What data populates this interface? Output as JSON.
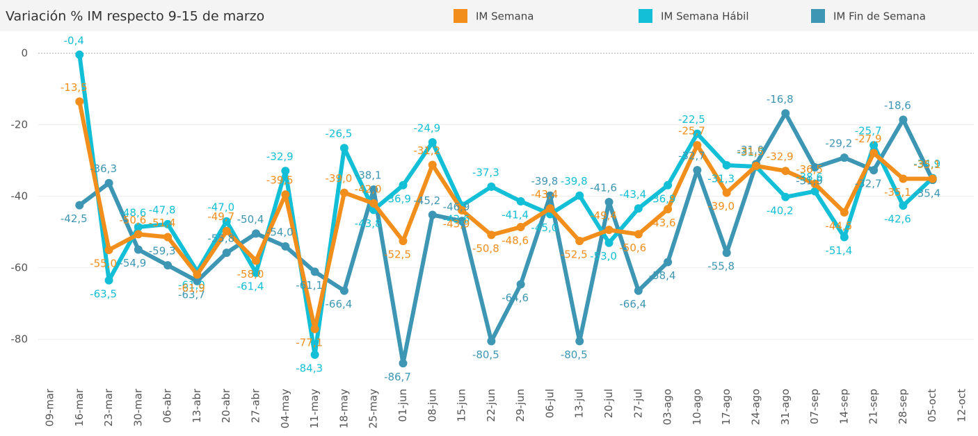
{
  "chart_data": {
    "type": "line",
    "title": "Variación % IM respecto 9-15 de marzo",
    "categories": [
      "09-mar",
      "16-mar",
      "23-mar",
      "30-mar",
      "06-abr",
      "13-abr",
      "20-abr",
      "27-abr",
      "04-may",
      "11-may",
      "18-may",
      "25-may",
      "01-jun",
      "08-jun",
      "15-jun",
      "22-jun",
      "29-jun",
      "06-jul",
      "13-jul",
      "20-jul",
      "27-jul",
      "03-ago",
      "10-ago",
      "17-ago",
      "24-ago",
      "31-ago",
      "07-sep",
      "14-sep",
      "21-sep",
      "28-sep",
      "05-oct",
      "12-oct"
    ],
    "series": [
      {
        "name": "IM Semana",
        "color": "#f28e1c",
        "values": [
          null,
          -13.5,
          -55.0,
          -50.6,
          -51.4,
          -61.9,
          -49.7,
          -58.0,
          -39.5,
          -77.1,
          -39.0,
          -42.0,
          -52.5,
          -31.2,
          -43.9,
          -50.8,
          -48.6,
          -43.4,
          -52.5,
          -49.4,
          -50.6,
          -43.6,
          -25.7,
          -39.0,
          -31.5,
          -32.9,
          -36.5,
          -44.5,
          -27.9,
          -35.1,
          -35.1,
          null
        ],
        "value_labels": [
          null,
          "-13,5",
          "-55,0",
          "-50,6",
          "-51,4",
          "-61,9",
          "-49,7",
          "-58,0",
          "-39,5",
          "-77,1",
          "-39,0",
          "-42,0",
          "-52,5",
          "-31,2",
          "-43,9",
          "-50,8",
          "-48,6",
          "-43,4",
          "-52,5",
          "-49,4",
          "-50,6",
          "-43,6",
          "-25,7",
          "-39,0",
          "-31,5",
          "-32,9",
          "-36,5",
          "-44,5",
          "-27,9",
          "-35,1",
          "-35,1",
          null
        ]
      },
      {
        "name": "IM Semana Hábil",
        "color": "#12bfd6",
        "values": [
          null,
          -0.4,
          -63.5,
          -48.6,
          -47.8,
          -61.0,
          -47.0,
          -61.4,
          -32.9,
          -84.3,
          -26.5,
          -43.8,
          -36.9,
          -24.9,
          -42.6,
          -37.3,
          -41.4,
          -45.0,
          -39.8,
          -53.0,
          -43.4,
          -36.9,
          -22.5,
          -31.3,
          -31.7,
          -40.2,
          -38.6,
          -51.4,
          -25.7,
          -42.6,
          -34.9,
          null
        ],
        "value_labels": [
          null,
          "-0,4",
          "-63,5",
          "-48,6",
          "-47,8",
          "-61,0",
          "-47,0",
          "-61,4",
          "-32,9",
          "-84,3",
          "-26,5",
          "-43,8",
          "-36,9",
          "-24,9",
          "-42,6",
          "-37,3",
          "-41,4",
          "-45,0",
          "-39,8",
          "-53,0",
          "-43,4",
          "-36,9",
          "-22,5",
          "-31,3",
          "-31,7",
          "-40,2",
          "-38,6",
          "-51,4",
          "-25,7",
          "-42,6",
          "-34,9",
          null
        ]
      },
      {
        "name": "IM Fin de Semana",
        "color": "#3d96b3",
        "values": [
          null,
          -42.5,
          -36.3,
          -54.9,
          -59.3,
          -63.7,
          -55.8,
          -50.4,
          -54.0,
          -61.1,
          -66.4,
          -38.1,
          -86.7,
          -45.2,
          -46.9,
          -80.5,
          -64.6,
          -39.8,
          -80.5,
          -41.6,
          -66.4,
          -58.4,
          -32.7,
          -55.8,
          -31.0,
          -16.8,
          -31.9,
          -29.2,
          -32.7,
          -18.6,
          -35.4,
          null
        ],
        "value_labels": [
          null,
          "-42,5",
          "-36,3",
          "-54,9",
          "-59,3",
          "-63,7",
          "-55,8",
          "-50,4",
          "-54,0",
          "-61,1",
          "-66,4",
          "-38,1",
          "-86,7",
          "-45,2",
          "-46,9",
          "-80,5",
          "-64,6",
          "-39,8",
          "-80,5",
          "-41,6",
          "-66,4",
          "-58,4",
          "-32,7",
          "-55,8",
          "-31,0",
          "-16,8",
          "-31,9",
          "-29,2",
          "-32,7",
          "-18,6",
          "-35,4",
          null
        ]
      }
    ],
    "ylim": [
      -91.5,
      5
    ],
    "yticks": [
      0,
      -20,
      -40,
      -60,
      -80
    ],
    "grid": true
  }
}
